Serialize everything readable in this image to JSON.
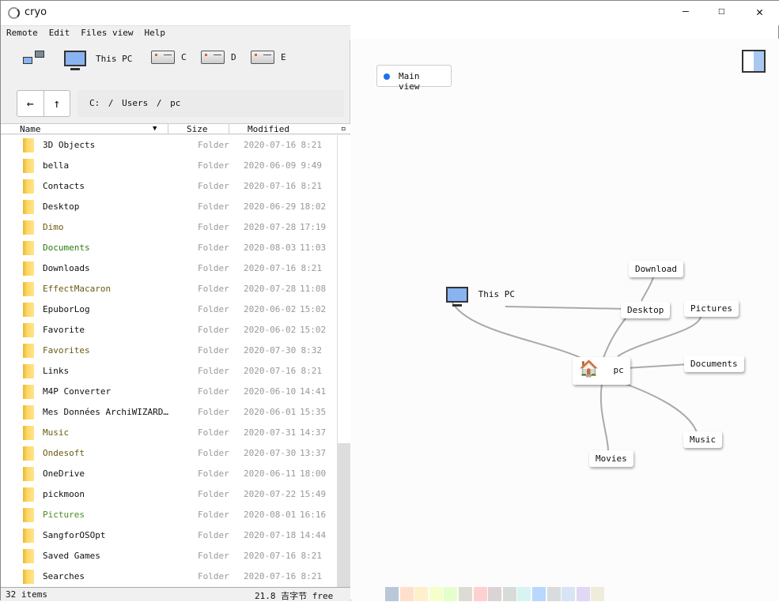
{
  "window": {
    "title": "cryo",
    "minimize": "—",
    "maximize": "☐",
    "close": "✕"
  },
  "menu": [
    "Remote",
    "Edit",
    "Files view",
    "Help"
  ],
  "drives": {
    "this_pc": "This PC",
    "c": "C",
    "d": "D",
    "e": "E"
  },
  "nav": {
    "back": "←",
    "up": "↑"
  },
  "path": "C:  /  Users /  pc",
  "columns": {
    "name": "Name",
    "size": "Size",
    "modified": "Modified"
  },
  "files": [
    {
      "name": "3D Objects",
      "size": "Folder",
      "date": "2020-07-16",
      "time": "8:21",
      "color": "#111"
    },
    {
      "name": "bella",
      "size": "Folder",
      "date": "2020-06-09",
      "time": "9:49",
      "color": "#111"
    },
    {
      "name": "Contacts",
      "size": "Folder",
      "date": "2020-07-16",
      "time": "8:21",
      "color": "#111"
    },
    {
      "name": "Desktop",
      "size": "Folder",
      "date": "2020-06-29",
      "time": "18:02",
      "color": "#111"
    },
    {
      "name": "Dimo",
      "size": "Folder",
      "date": "2020-07-28",
      "time": "17:19",
      "color": "#6b5a10"
    },
    {
      "name": "Documents",
      "size": "Folder",
      "date": "2020-08-03",
      "time": "11:03",
      "color": "#2a7a10"
    },
    {
      "name": "Downloads",
      "size": "Folder",
      "date": "2020-07-16",
      "time": "8:21",
      "color": "#111"
    },
    {
      "name": "EffectMacaron",
      "size": "Folder",
      "date": "2020-07-28",
      "time": "11:08",
      "color": "#6b5a10"
    },
    {
      "name": "EpuborLog",
      "size": "Folder",
      "date": "2020-06-02",
      "time": "15:02",
      "color": "#111"
    },
    {
      "name": "Favorite",
      "size": "Folder",
      "date": "2020-06-02",
      "time": "15:02",
      "color": "#111"
    },
    {
      "name": "Favorites",
      "size": "Folder",
      "date": "2020-07-30",
      "time": "8:32",
      "color": "#6b5a10"
    },
    {
      "name": "Links",
      "size": "Folder",
      "date": "2020-07-16",
      "time": "8:21",
      "color": "#111"
    },
    {
      "name": "M4P Converter",
      "size": "Folder",
      "date": "2020-06-10",
      "time": "14:41",
      "color": "#111"
    },
    {
      "name": "Mes Données ArchiWIZARD…",
      "size": "Folder",
      "date": "2020-06-01",
      "time": "15:35",
      "color": "#111"
    },
    {
      "name": "Music",
      "size": "Folder",
      "date": "2020-07-31",
      "time": "14:37",
      "color": "#6b5a10"
    },
    {
      "name": "Ondesoft",
      "size": "Folder",
      "date": "2020-07-30",
      "time": "13:37",
      "color": "#6b5a10"
    },
    {
      "name": "OneDrive",
      "size": "Folder",
      "date": "2020-06-11",
      "time": "18:00",
      "color": "#111"
    },
    {
      "name": "pickmoon",
      "size": "Folder",
      "date": "2020-07-22",
      "time": "15:49",
      "color": "#111"
    },
    {
      "name": "Pictures",
      "size": "Folder",
      "date": "2020-08-01",
      "time": "16:16",
      "color": "#4a8a20"
    },
    {
      "name": "SangforOSOpt",
      "size": "Folder",
      "date": "2020-07-18",
      "time": "14:44",
      "color": "#111"
    },
    {
      "name": "Saved Games",
      "size": "Folder",
      "date": "2020-07-16",
      "time": "8:21",
      "color": "#111"
    },
    {
      "name": "Searches",
      "size": "Folder",
      "date": "2020-07-16",
      "time": "8:21",
      "color": "#111"
    }
  ],
  "status": {
    "count": "32 items",
    "free": "21.8 吉字节 free"
  },
  "graph": {
    "main_view": "Main view",
    "this_pc": "This PC",
    "center": "pc",
    "nodes": [
      "Download",
      "Desktop",
      "Pictures",
      "Documents",
      "Music",
      "Movies"
    ]
  },
  "palette": [
    "#b8c8d8",
    "#ffe0cc",
    "#fff0cc",
    "#f4ffcc",
    "#e4ffcc",
    "#dcdcd4",
    "#ffd0d0",
    "#dcd4d4",
    "#d8dcd8",
    "#d8f4f0",
    "#b8d8ff",
    "#d8dcdc",
    "#d8e4f4",
    "#e0d8f4",
    "#f0ecdc"
  ]
}
